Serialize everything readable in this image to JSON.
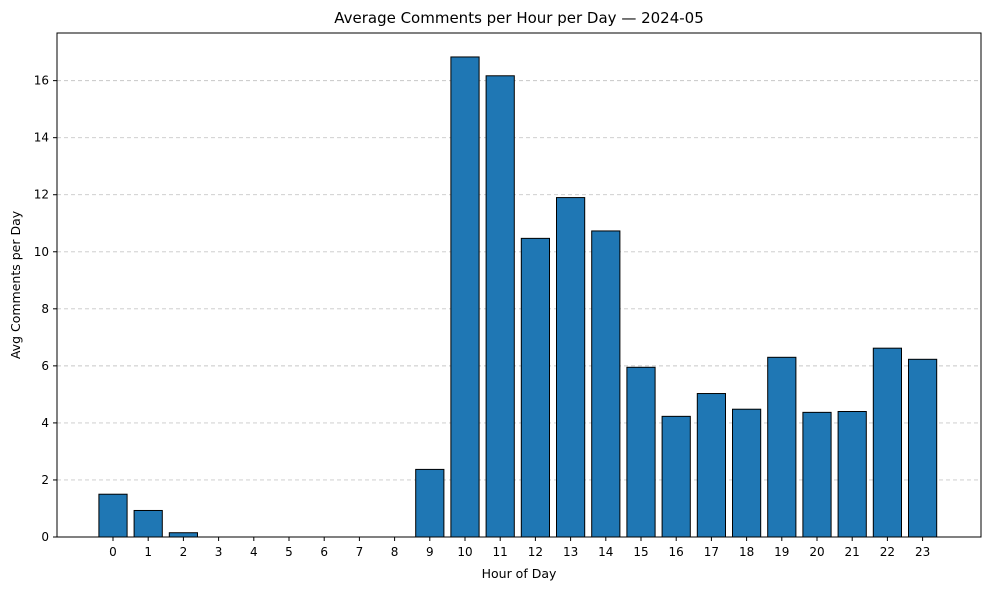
{
  "chart_data": {
    "type": "bar",
    "title": "Average Comments per Hour per Day — 2024-05",
    "xlabel": "Hour of Day",
    "ylabel": "Avg Comments per Day",
    "categories": [
      "0",
      "1",
      "2",
      "3",
      "4",
      "5",
      "6",
      "7",
      "8",
      "9",
      "10",
      "11",
      "12",
      "13",
      "14",
      "15",
      "16",
      "17",
      "18",
      "19",
      "20",
      "21",
      "22",
      "23"
    ],
    "values": [
      1.5,
      0.93,
      0.15,
      0,
      0,
      0,
      0,
      0,
      0,
      2.37,
      16.83,
      16.17,
      10.47,
      11.9,
      10.73,
      5.95,
      4.23,
      5.03,
      4.48,
      6.3,
      4.37,
      4.4,
      6.62,
      6.23
    ],
    "ylim": [
      0,
      17.67
    ],
    "yticks": [
      0,
      2,
      4,
      6,
      8,
      10,
      12,
      14,
      16
    ],
    "grid": "y-dashed",
    "bar_color": "#1f77b4",
    "edge_color": "#000000",
    "grid_color": "#c8c8c8"
  }
}
